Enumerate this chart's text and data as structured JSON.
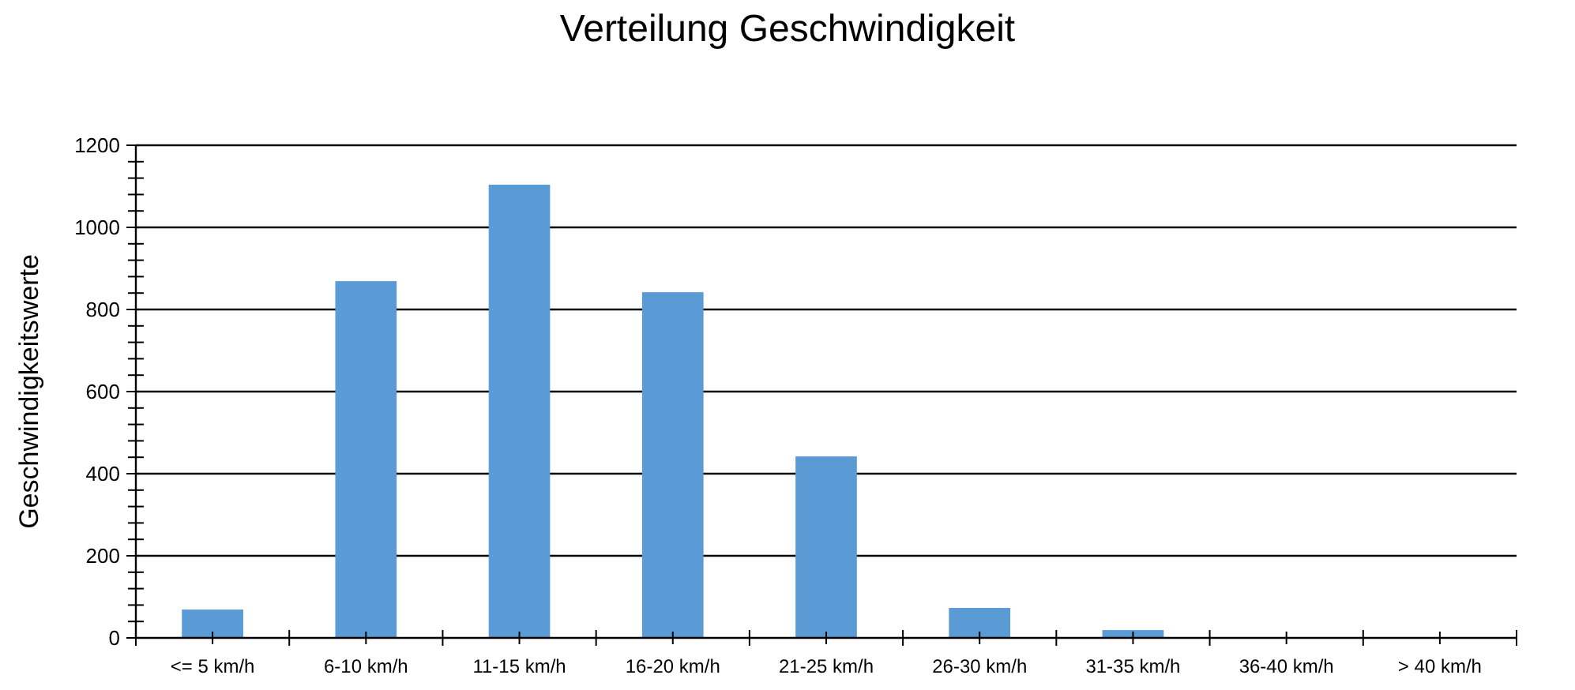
{
  "chart_data": {
    "type": "bar",
    "title": "Verteilung Geschwindigkeit",
    "ylabel": "Geschwindigkeitswerte",
    "categories": [
      "<= 5 km/h",
      "6-10 km/h",
      "11-15 km/h",
      "16-20 km/h",
      "21-25 km/h",
      "26-30 km/h",
      "31-35 km/h",
      "36-40 km/h",
      "> 40 km/h"
    ],
    "values": [
      69,
      869,
      1104,
      842,
      442,
      73,
      19,
      0,
      0
    ],
    "color": "#5b9bd5",
    "ylim": [
      0,
      1200
    ],
    "yticks": [
      0,
      {
        "value": 40,
        "label": null
      },
      {
        "value": 80,
        "label": null
      },
      {
        "value": 120,
        "label": null
      },
      {
        "value": 160,
        "label": null
      },
      200,
      {
        "value": 240,
        "label": null
      },
      {
        "value": 280,
        "label": null
      },
      {
        "value": 320,
        "label": null
      },
      {
        "value": 360,
        "label": null
      },
      400,
      {
        "value": 440,
        "label": null
      },
      {
        "value": 480,
        "label": null
      },
      {
        "value": 520,
        "label": null
      },
      {
        "value": 560,
        "label": null
      },
      600,
      {
        "value": 640,
        "label": null
      },
      {
        "value": 680,
        "label": null
      },
      {
        "value": 720,
        "label": null
      },
      {
        "value": 760,
        "label": null
      },
      800,
      {
        "value": 840,
        "label": null
      },
      {
        "value": 880,
        "label": null
      },
      {
        "value": 920,
        "label": null
      },
      {
        "value": 960,
        "label": null
      },
      1000,
      {
        "value": 1040,
        "label": null
      },
      {
        "value": 1080,
        "label": null
      },
      {
        "value": 1120,
        "label": null
      },
      {
        "value": 1160,
        "label": null
      },
      1200
    ],
    "grid": "y"
  }
}
